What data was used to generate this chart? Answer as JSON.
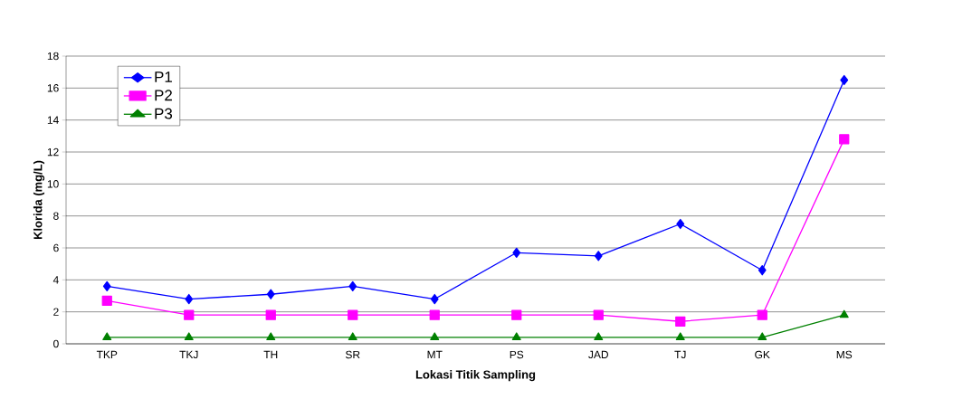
{
  "chart_data": {
    "type": "line",
    "xlabel": "Lokasi Titik Sampling",
    "ylabel": "Klorida (mg/L)",
    "categories": [
      "TKP",
      "TKJ",
      "TH",
      "SR",
      "MT",
      "PS",
      "JAD",
      "TJ",
      "GK",
      "MS"
    ],
    "series": [
      {
        "name": "P1",
        "color": "#0000ff",
        "marker": "diamond",
        "values": [
          3.6,
          2.8,
          3.1,
          3.6,
          2.8,
          5.7,
          5.5,
          7.5,
          4.6,
          16.5
        ]
      },
      {
        "name": "P2",
        "color": "#ff00ff",
        "marker": "square",
        "values": [
          2.7,
          1.8,
          1.8,
          1.8,
          1.8,
          1.8,
          1.8,
          1.4,
          1.8,
          12.8
        ]
      },
      {
        "name": "P3",
        "color": "#008000",
        "marker": "triangle",
        "values": [
          0.4,
          0.4,
          0.4,
          0.4,
          0.4,
          0.4,
          0.4,
          0.4,
          0.4,
          1.8
        ]
      }
    ],
    "ylim": [
      0,
      18
    ],
    "yticks": [
      0,
      2,
      4,
      6,
      8,
      10,
      12,
      14,
      16,
      18
    ],
    "grid": "y",
    "legend": "top left"
  }
}
